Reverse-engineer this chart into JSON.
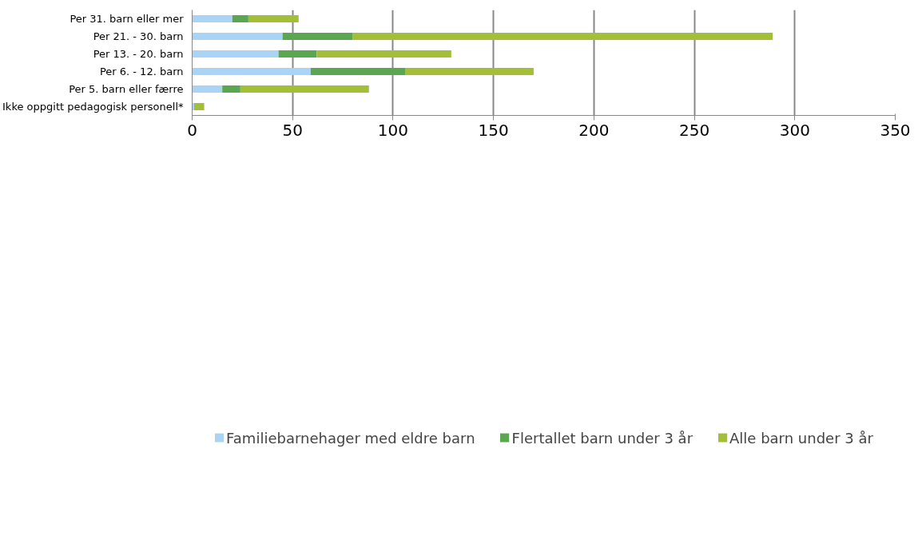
{
  "chart_data": {
    "type": "bar",
    "orientation": "horizontal",
    "stacked": true,
    "categories": [
      "Per 31. barn eller mer",
      "Per 21. - 30. barn",
      "Per 13. - 20. barn",
      "Per 6. - 12. barn",
      "Per 5. barn eller færre",
      "Ikke oppgitt pedagogisk personell*"
    ],
    "series": [
      {
        "name": "Familiebarnehager med eldre barn",
        "color": "#a9d4f5",
        "values": [
          20,
          45,
          43,
          59,
          15,
          1
        ]
      },
      {
        "name": "Flertallet barn under 3 år",
        "color": "#5ba650",
        "values": [
          8,
          35,
          19,
          47,
          9,
          0
        ]
      },
      {
        "name": "Alle barn under 3 år",
        "color": "#a2bf37",
        "values": [
          25,
          209,
          67,
          64,
          64,
          5
        ]
      }
    ],
    "xlim": [
      0,
      350
    ],
    "xticks": [
      0,
      50,
      100,
      150,
      200,
      250,
      300,
      350
    ],
    "grid": "x",
    "legend": "bottom"
  }
}
